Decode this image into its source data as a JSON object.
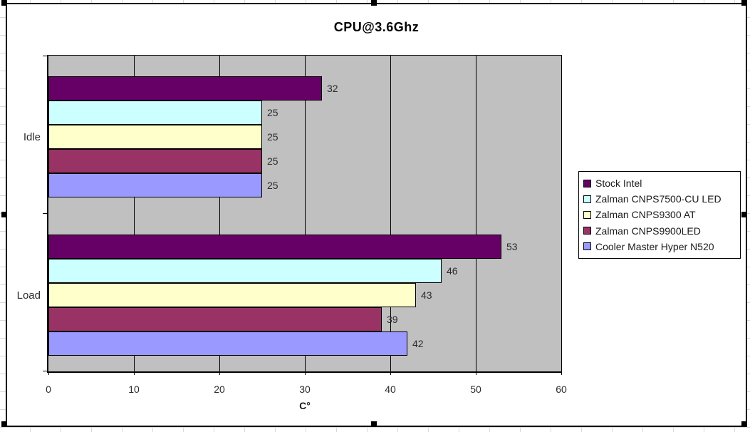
{
  "chart_data": {
    "type": "bar",
    "orientation": "horizontal",
    "title": "CPU@3.6Ghz",
    "xlabel": "C°",
    "categories": [
      "Idle",
      "Load"
    ],
    "series": [
      {
        "name": "Stock Intel",
        "color": "#660066",
        "values": [
          32,
          53
        ]
      },
      {
        "name": "Zalman CNPS7500-CU LED",
        "color": "#CCFFFF",
        "values": [
          25,
          46
        ]
      },
      {
        "name": "Zalman CNPS9300 AT",
        "color": "#FFFFCC",
        "values": [
          25,
          43
        ]
      },
      {
        "name": "Zalman CNPS9900LED",
        "color": "#993366",
        "values": [
          25,
          39
        ]
      },
      {
        "name": "Cooler Master Hyper N520",
        "color": "#9999FF",
        "values": [
          25,
          42
        ]
      }
    ],
    "xlim": [
      0,
      60
    ],
    "x_ticks": [
      0,
      10,
      20,
      30,
      40,
      50,
      60
    ],
    "grid": true,
    "data_labels": true,
    "legend_position": "right",
    "plot_bg": "#C0C0C0",
    "chart_bg": "#FFFFFF"
  }
}
